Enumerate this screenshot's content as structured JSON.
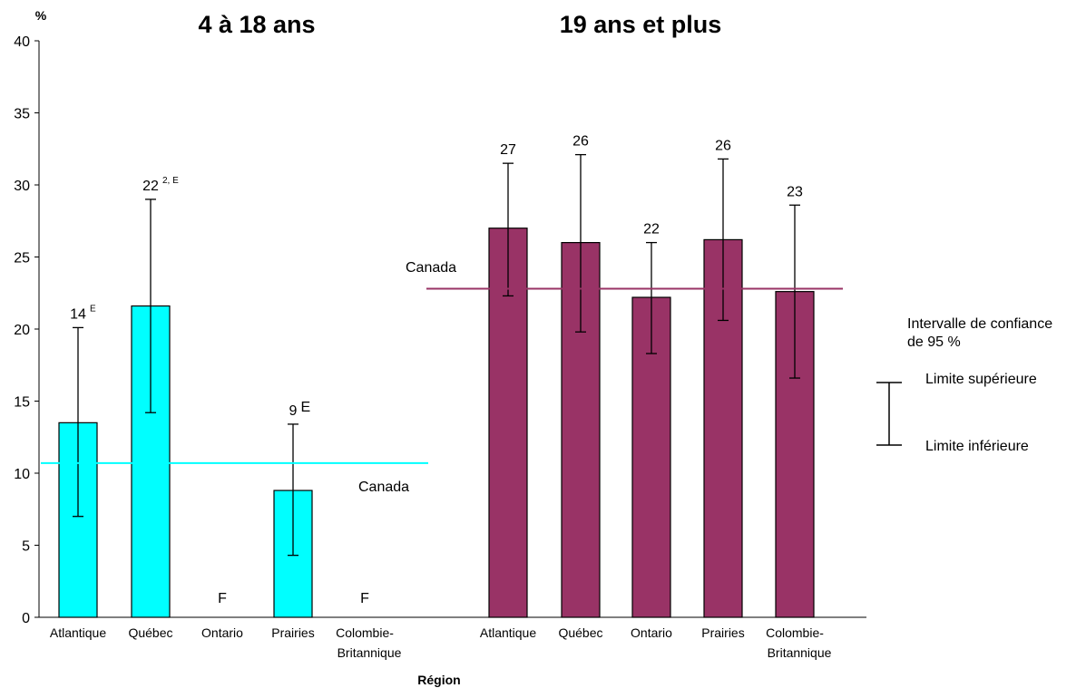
{
  "chart_data": {
    "type": "bar",
    "ylabel": "%",
    "xlabel": "Région",
    "ylim": [
      0,
      40
    ],
    "yticks": [
      0,
      5,
      10,
      15,
      20,
      25,
      30,
      35,
      40
    ],
    "panels": [
      {
        "title": "4 à 18 ans",
        "color": "#00FFFF",
        "canada_value": 10.7,
        "canada_label": "Canada",
        "categories": [
          "Atlantique",
          "Québec",
          "Ontario",
          "Prairies",
          "Colombie-Britannique"
        ],
        "category_lines": [
          [
            "Atlantique"
          ],
          [
            "Québec"
          ],
          [
            "Ontario"
          ],
          [
            "Prairies"
          ],
          [
            "Colombie-",
            "Britannique"
          ]
        ],
        "values": [
          13.5,
          21.6,
          null,
          8.8,
          null
        ],
        "ci_lower": [
          7.0,
          14.2,
          null,
          4.3,
          null
        ],
        "ci_upper": [
          20.1,
          29.0,
          null,
          13.4,
          null
        ],
        "labels": [
          "14",
          "22",
          "F",
          "9",
          "F"
        ],
        "label_notes": [
          "E",
          "2, E",
          "",
          "E",
          ""
        ]
      },
      {
        "title": "19 ans et plus",
        "color": "#993366",
        "canada_value": 22.8,
        "canada_label": "Canada",
        "categories": [
          "Atlantique",
          "Québec",
          "Ontario",
          "Prairies",
          "Colombie-Britannique"
        ],
        "category_lines": [
          [
            "Atlantique"
          ],
          [
            "Québec"
          ],
          [
            "Ontario"
          ],
          [
            "Prairies"
          ],
          [
            "Colombie-",
            "Britannique"
          ]
        ],
        "values": [
          27.0,
          26.0,
          22.2,
          26.2,
          22.6
        ],
        "ci_lower": [
          22.3,
          19.8,
          18.3,
          20.6,
          16.6
        ],
        "ci_upper": [
          31.5,
          32.1,
          26.0,
          31.8,
          28.6
        ],
        "labels": [
          "27",
          "26",
          "22",
          "26",
          "23"
        ],
        "label_notes": [
          "",
          "",
          "",
          "",
          ""
        ]
      }
    ],
    "legend": {
      "title_lines": [
        "Intervalle de confiance",
        "de 95 %"
      ],
      "upper": "Limite supérieure",
      "lower": "Limite inférieure"
    }
  }
}
